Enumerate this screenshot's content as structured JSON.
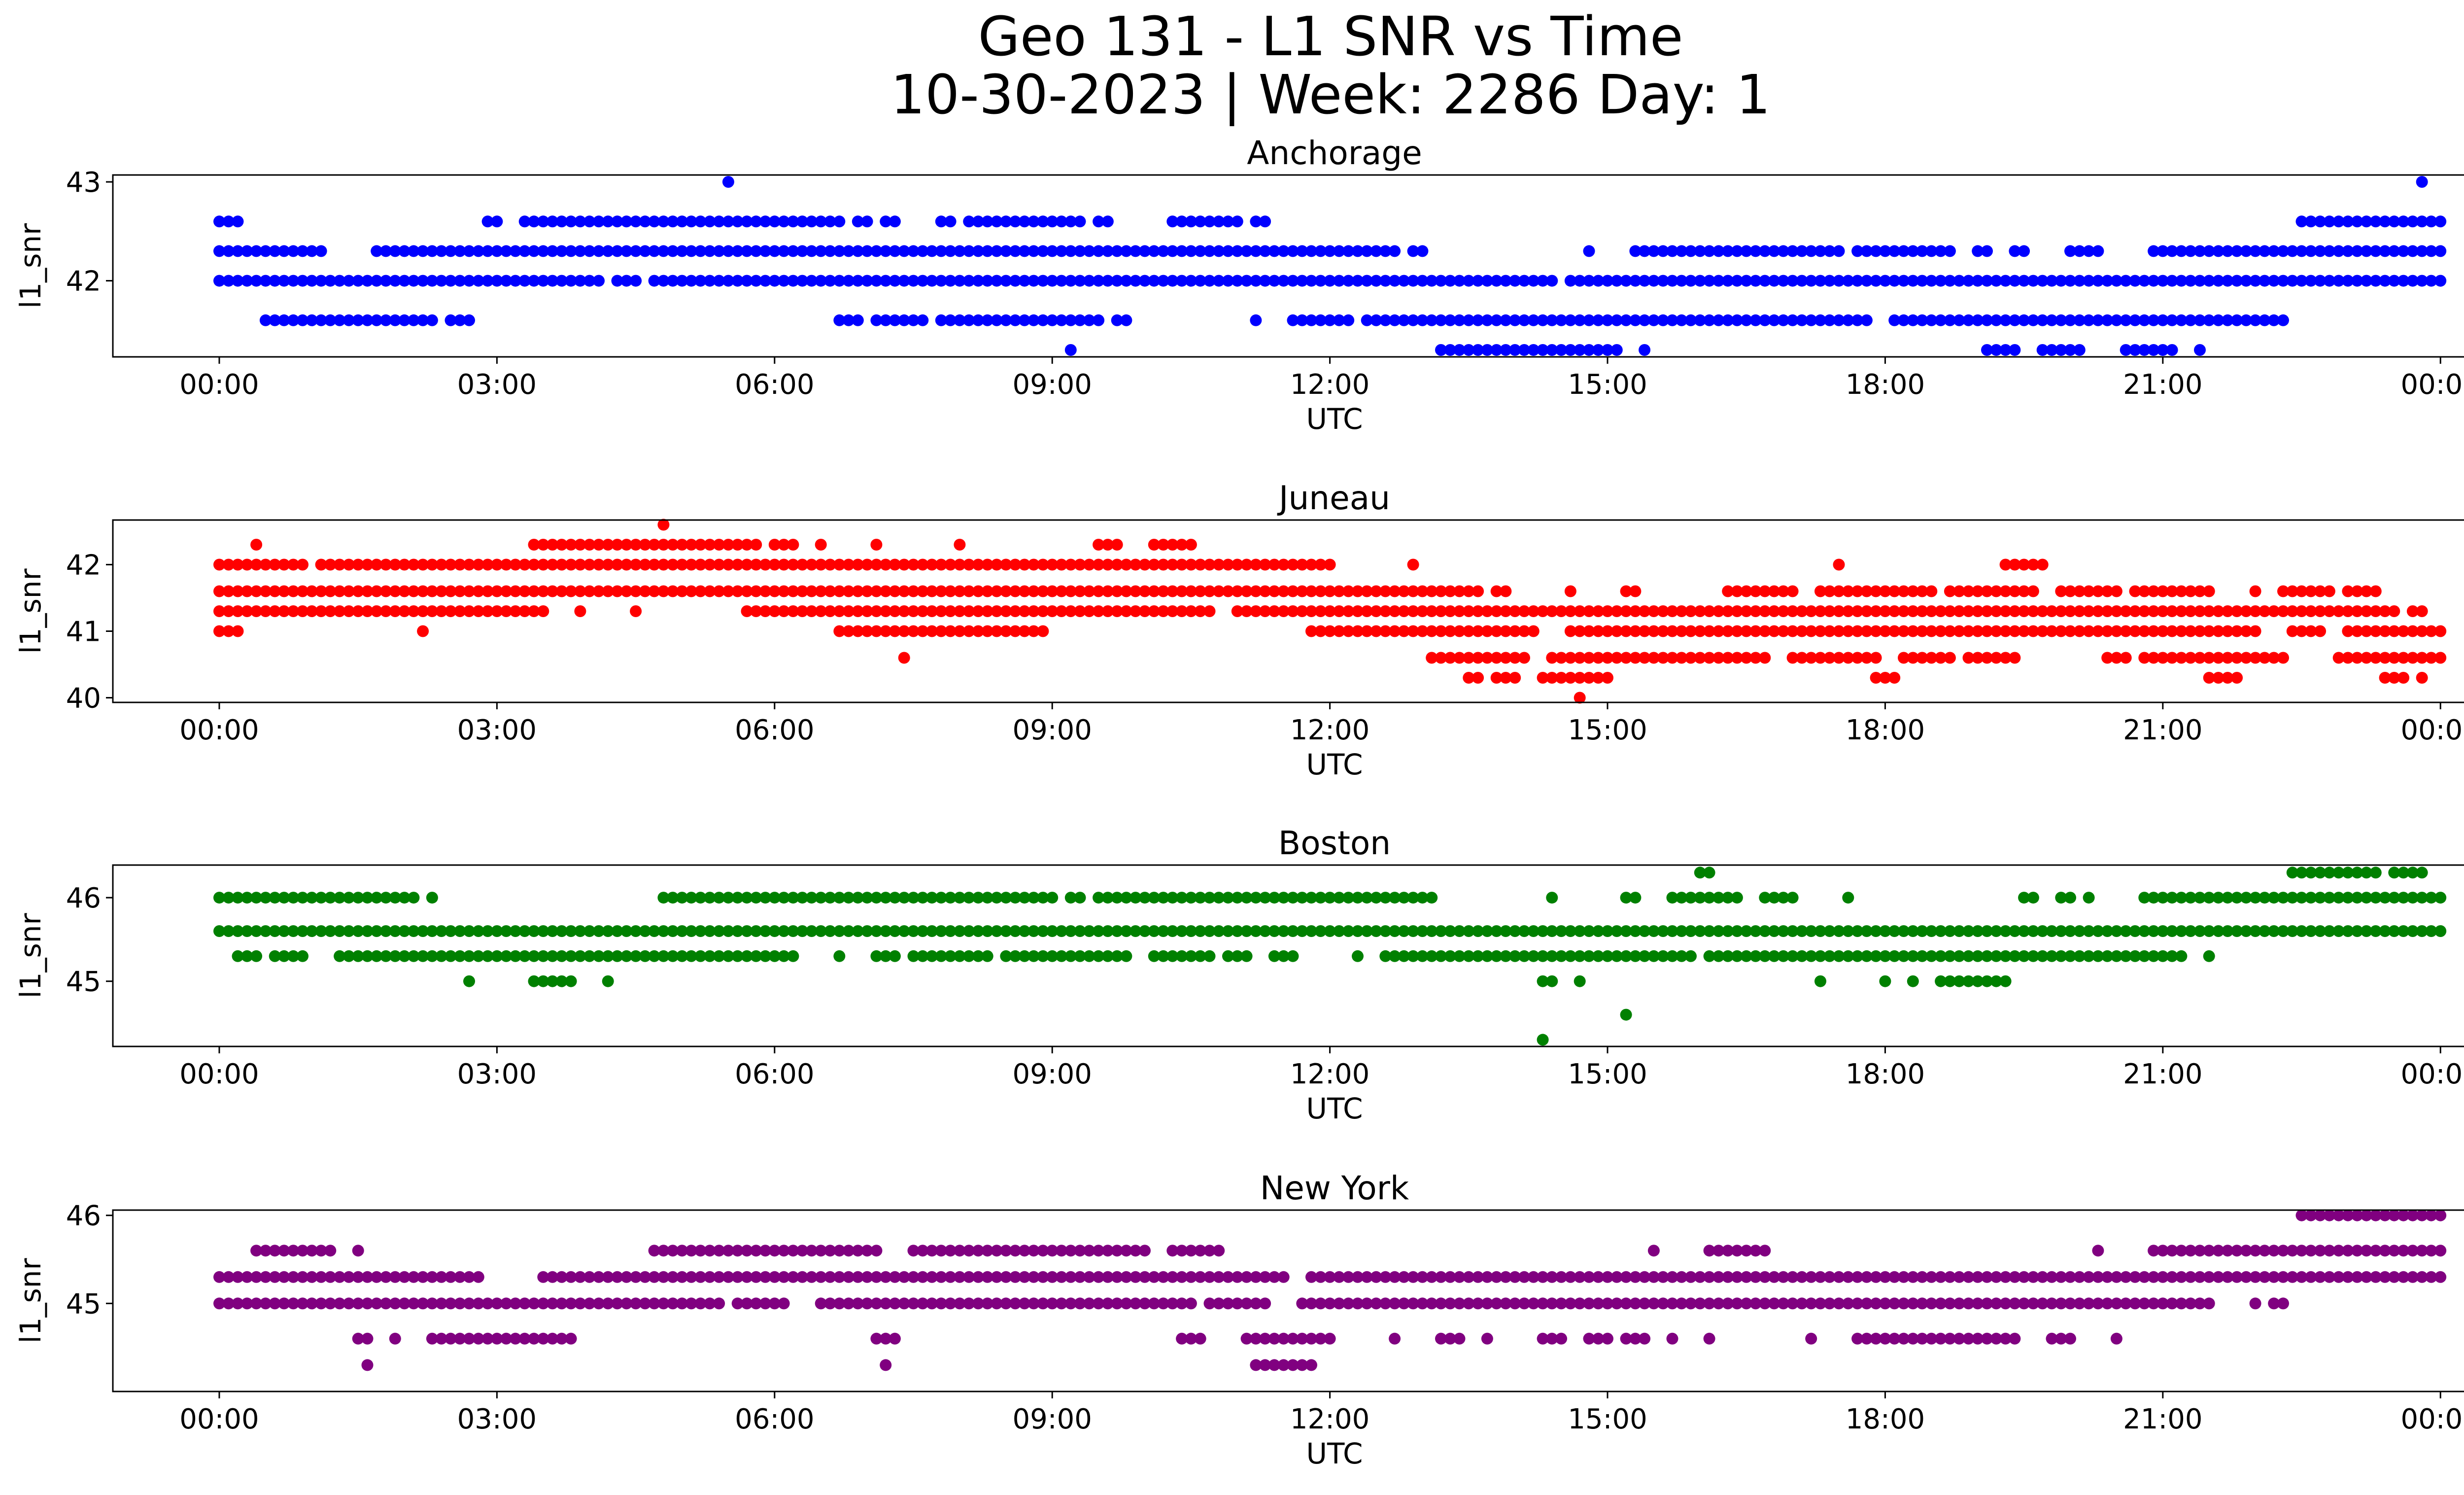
{
  "figure": {
    "title_line1": "Geo 131 - L1 SNR vs Time",
    "title_line2": "10-30-2023 | Week: 2286 Day: 1"
  },
  "chart_data": [
    {
      "type": "scatter",
      "title": "Anchorage",
      "xlabel": "UTC",
      "ylabel": "l1_snr",
      "color": "#0000ff",
      "xticks": [
        "00:00",
        "03:00",
        "06:00",
        "09:00",
        "12:00",
        "15:00",
        "18:00",
        "21:00",
        "00:00"
      ],
      "xlim_hours": [
        -1.15,
        25.25
      ],
      "ylim": [
        41.23,
        43.07
      ],
      "yticks": [
        42,
        43
      ],
      "levels": [
        {
          "y": 43.0,
          "ranges": [
            [
              5.5,
              5.5
            ],
            [
              23.8,
              23.8
            ]
          ]
        },
        {
          "y": 42.6,
          "ranges": [
            [
              0.0,
              0.2
            ],
            [
              2.9,
              3.0
            ],
            [
              3.3,
              5.2
            ],
            [
              5.3,
              6.7
            ],
            [
              6.9,
              7.0
            ],
            [
              7.2,
              7.3
            ],
            [
              7.8,
              7.9
            ],
            [
              8.1,
              9.3
            ],
            [
              9.5,
              9.6
            ],
            [
              10.3,
              11.0
            ],
            [
              11.2,
              11.3
            ],
            [
              22.5,
              24.0
            ]
          ]
        },
        {
          "y": 42.3,
          "ranges": [
            [
              0.0,
              1.1
            ],
            [
              1.7,
              12.7
            ],
            [
              12.9,
              13.0
            ],
            [
              14.8,
              14.8
            ],
            [
              15.3,
              17.5
            ],
            [
              17.7,
              18.7
            ],
            [
              19.0,
              19.1
            ],
            [
              19.4,
              19.5
            ],
            [
              20.0,
              20.3
            ],
            [
              20.9,
              24.0
            ]
          ]
        },
        {
          "y": 42.0,
          "ranges": [
            [
              0.0,
              4.1
            ],
            [
              4.3,
              4.5
            ],
            [
              4.7,
              14.4
            ],
            [
              14.6,
              24.0
            ]
          ]
        },
        {
          "y": 41.6,
          "ranges": [
            [
              0.5,
              2.3
            ],
            [
              2.5,
              2.7
            ],
            [
              6.7,
              6.9
            ],
            [
              7.1,
              7.6
            ],
            [
              7.8,
              9.5
            ],
            [
              9.7,
              9.8
            ],
            [
              11.2,
              11.2
            ],
            [
              11.6,
              11.8
            ],
            [
              11.9,
              12.2
            ],
            [
              12.4,
              17.8
            ],
            [
              18.1,
              22.3
            ]
          ]
        },
        {
          "y": 41.3,
          "ranges": [
            [
              9.2,
              9.2
            ],
            [
              13.2,
              13.9
            ],
            [
              14.0,
              15.1
            ],
            [
              15.4,
              15.4
            ],
            [
              19.1,
              19.4
            ],
            [
              19.7,
              20.1
            ],
            [
              20.6,
              21.0
            ],
            [
              21.1,
              21.1
            ],
            [
              21.4,
              21.4
            ]
          ]
        }
      ]
    },
    {
      "type": "scatter",
      "title": "Juneau",
      "xlabel": "UTC",
      "ylabel": "l1_snr",
      "color": "#ff0000",
      "xticks": [
        "00:00",
        "03:00",
        "06:00",
        "09:00",
        "12:00",
        "15:00",
        "18:00",
        "21:00",
        "00:00"
      ],
      "xlim_hours": [
        -1.15,
        25.25
      ],
      "ylim": [
        39.93,
        42.67
      ],
      "yticks": [
        40,
        41,
        42
      ],
      "levels": [
        {
          "y": 42.6,
          "ranges": [
            [
              4.8,
              4.8
            ]
          ]
        },
        {
          "y": 42.3,
          "ranges": [
            [
              0.4,
              0.4
            ],
            [
              3.4,
              5.8
            ],
            [
              6.0,
              6.2
            ],
            [
              6.5,
              6.5
            ],
            [
              7.1,
              7.1
            ],
            [
              8.0,
              8.0
            ],
            [
              9.5,
              9.7
            ],
            [
              10.1,
              10.5
            ]
          ]
        },
        {
          "y": 42.0,
          "ranges": [
            [
              0.0,
              0.9
            ],
            [
              1.1,
              1.6
            ],
            [
              1.7,
              12.0
            ],
            [
              12.9,
              12.9
            ],
            [
              17.5,
              17.5
            ],
            [
              19.3,
              19.7
            ]
          ]
        },
        {
          "y": 41.6,
          "ranges": [
            [
              0.0,
              13.6
            ],
            [
              13.8,
              13.9
            ],
            [
              14.6,
              14.6
            ],
            [
              15.2,
              15.3
            ],
            [
              16.3,
              17.0
            ],
            [
              17.3,
              17.8
            ],
            [
              17.9,
              18.5
            ],
            [
              18.7,
              19.6
            ],
            [
              19.9,
              20.5
            ],
            [
              20.7,
              21.5
            ],
            [
              22.0,
              22.0
            ],
            [
              22.3,
              22.8
            ],
            [
              23.0,
              23.3
            ]
          ]
        },
        {
          "y": 41.3,
          "ranges": [
            [
              0.0,
              3.5
            ],
            [
              3.9,
              3.9
            ],
            [
              4.5,
              4.5
            ],
            [
              5.7,
              6.5
            ],
            [
              6.6,
              10.7
            ],
            [
              11.0,
              23.5
            ],
            [
              23.7,
              23.8
            ]
          ]
        },
        {
          "y": 41.0,
          "ranges": [
            [
              0.0,
              0.2
            ],
            [
              2.2,
              2.2
            ],
            [
              6.7,
              8.5
            ],
            [
              8.6,
              8.9
            ],
            [
              11.8,
              14.2
            ],
            [
              14.6,
              22.0
            ],
            [
              22.4,
              22.7
            ],
            [
              23.0,
              24.0
            ]
          ]
        },
        {
          "y": 40.6,
          "ranges": [
            [
              7.4,
              7.4
            ],
            [
              13.1,
              14.1
            ],
            [
              14.4,
              15.2
            ],
            [
              15.3,
              16.7
            ],
            [
              17.0,
              17.9
            ],
            [
              18.2,
              18.7
            ],
            [
              18.9,
              19.4
            ],
            [
              20.4,
              20.6
            ],
            [
              20.8,
              22.3
            ],
            [
              22.9,
              24.0
            ]
          ]
        },
        {
          "y": 40.3,
          "ranges": [
            [
              13.5,
              13.6
            ],
            [
              13.8,
              14.0
            ],
            [
              14.3,
              15.0
            ],
            [
              17.9,
              18.1
            ],
            [
              21.5,
              21.8
            ],
            [
              23.4,
              23.6
            ],
            [
              23.8,
              23.8
            ]
          ]
        },
        {
          "y": 40.0,
          "ranges": [
            [
              14.7,
              14.7
            ]
          ]
        }
      ]
    },
    {
      "type": "scatter",
      "title": "Boston",
      "xlabel": "UTC",
      "ylabel": "l1_snr",
      "color": "#008000",
      "xticks": [
        "00:00",
        "03:00",
        "06:00",
        "09:00",
        "12:00",
        "15:00",
        "18:00",
        "21:00",
        "00:00"
      ],
      "xlim_hours": [
        -1.15,
        25.25
      ],
      "ylim": [
        44.22,
        46.39
      ],
      "yticks": [
        45,
        46
      ],
      "levels": [
        {
          "y": 46.3,
          "ranges": [
            [
              16.0,
              16.1
            ],
            [
              22.4,
              23.0
            ],
            [
              23.1,
              23.3
            ],
            [
              23.5,
              23.8
            ]
          ]
        },
        {
          "y": 46.0,
          "ranges": [
            [
              0.0,
              2.1
            ],
            [
              2.3,
              2.3
            ],
            [
              4.8,
              7.9
            ],
            [
              8.0,
              9.0
            ],
            [
              9.2,
              9.3
            ],
            [
              9.5,
              13.1
            ],
            [
              14.4,
              14.4
            ],
            [
              15.2,
              15.3
            ],
            [
              15.7,
              16.4
            ],
            [
              16.7,
              17.0
            ],
            [
              17.6,
              17.6
            ],
            [
              19.5,
              19.6
            ],
            [
              19.9,
              20.0
            ],
            [
              20.2,
              20.2
            ],
            [
              20.8,
              24.0
            ]
          ]
        },
        {
          "y": 45.6,
          "ranges": [
            [
              0.0,
              24.0
            ]
          ]
        },
        {
          "y": 45.3,
          "ranges": [
            [
              0.2,
              0.4
            ],
            [
              0.6,
              0.7
            ],
            [
              0.8,
              0.9
            ],
            [
              1.3,
              1.6
            ],
            [
              1.7,
              1.8
            ],
            [
              1.9,
              6.0
            ],
            [
              6.1,
              6.2
            ],
            [
              6.7,
              6.7
            ],
            [
              7.1,
              7.3
            ],
            [
              7.5,
              7.9
            ],
            [
              8.0,
              8.3
            ],
            [
              8.5,
              9.8
            ],
            [
              10.1,
              10.7
            ],
            [
              10.9,
              11.1
            ],
            [
              11.4,
              11.6
            ],
            [
              12.3,
              12.3
            ],
            [
              12.6,
              15.9
            ],
            [
              16.1,
              21.2
            ],
            [
              21.5,
              21.5
            ]
          ]
        },
        {
          "y": 45.0,
          "ranges": [
            [
              2.7,
              2.7
            ],
            [
              3.4,
              3.8
            ],
            [
              4.2,
              4.2
            ],
            [
              14.3,
              14.4
            ],
            [
              14.7,
              14.7
            ],
            [
              17.3,
              17.3
            ],
            [
              18.0,
              18.0
            ],
            [
              18.3,
              18.3
            ],
            [
              18.6,
              19.3
            ]
          ]
        },
        {
          "y": 44.6,
          "ranges": [
            [
              15.2,
              15.2
            ]
          ]
        },
        {
          "y": 44.3,
          "ranges": [
            [
              14.3,
              14.3
            ]
          ]
        }
      ]
    },
    {
      "type": "scatter",
      "title": "New York",
      "xlabel": "UTC",
      "ylabel": "l1_snr",
      "color": "#800080",
      "xticks": [
        "00:00",
        "03:00",
        "06:00",
        "09:00",
        "12:00",
        "15:00",
        "18:00",
        "21:00",
        "00:00"
      ],
      "xlim_hours": [
        -1.15,
        25.25
      ],
      "ylim": [
        44.0,
        46.06
      ],
      "yticks": [
        45,
        46
      ],
      "levels": [
        {
          "y": 46.0,
          "ranges": [
            [
              22.5,
              24.0
            ]
          ]
        },
        {
          "y": 45.6,
          "ranges": [
            [
              0.4,
              1.2
            ],
            [
              1.5,
              1.5
            ],
            [
              4.7,
              7.1
            ],
            [
              7.5,
              10.0
            ],
            [
              10.3,
              10.8
            ],
            [
              15.5,
              15.5
            ],
            [
              16.1,
              16.7
            ],
            [
              20.3,
              20.3
            ],
            [
              20.9,
              24.0
            ]
          ]
        },
        {
          "y": 45.3,
          "ranges": [
            [
              0.0,
              2.8
            ],
            [
              3.5,
              11.5
            ],
            [
              11.8,
              24.0
            ]
          ]
        },
        {
          "y": 45.0,
          "ranges": [
            [
              0.0,
              5.4
            ],
            [
              5.6,
              6.1
            ],
            [
              6.5,
              10.5
            ],
            [
              10.7,
              11.3
            ],
            [
              11.7,
              21.5
            ],
            [
              22.0,
              22.0
            ],
            [
              22.2,
              22.3
            ]
          ]
        },
        {
          "y": 44.6,
          "ranges": [
            [
              1.5,
              1.6
            ],
            [
              1.9,
              1.9
            ],
            [
              2.3,
              2.5
            ],
            [
              2.6,
              3.8
            ],
            [
              7.1,
              7.3
            ],
            [
              10.4,
              10.6
            ],
            [
              11.1,
              12.0
            ],
            [
              12.7,
              12.7
            ],
            [
              13.2,
              13.4
            ],
            [
              13.7,
              13.7
            ],
            [
              14.3,
              14.5
            ],
            [
              14.8,
              15.0
            ],
            [
              15.2,
              15.4
            ],
            [
              15.7,
              15.7
            ],
            [
              16.1,
              16.1
            ],
            [
              17.2,
              17.2
            ],
            [
              17.7,
              19.4
            ],
            [
              19.8,
              20.0
            ],
            [
              20.5,
              20.5
            ]
          ]
        },
        {
          "y": 44.3,
          "ranges": [
            [
              1.6,
              1.6
            ],
            [
              7.2,
              7.2
            ],
            [
              11.2,
              11.8
            ]
          ]
        }
      ]
    }
  ]
}
